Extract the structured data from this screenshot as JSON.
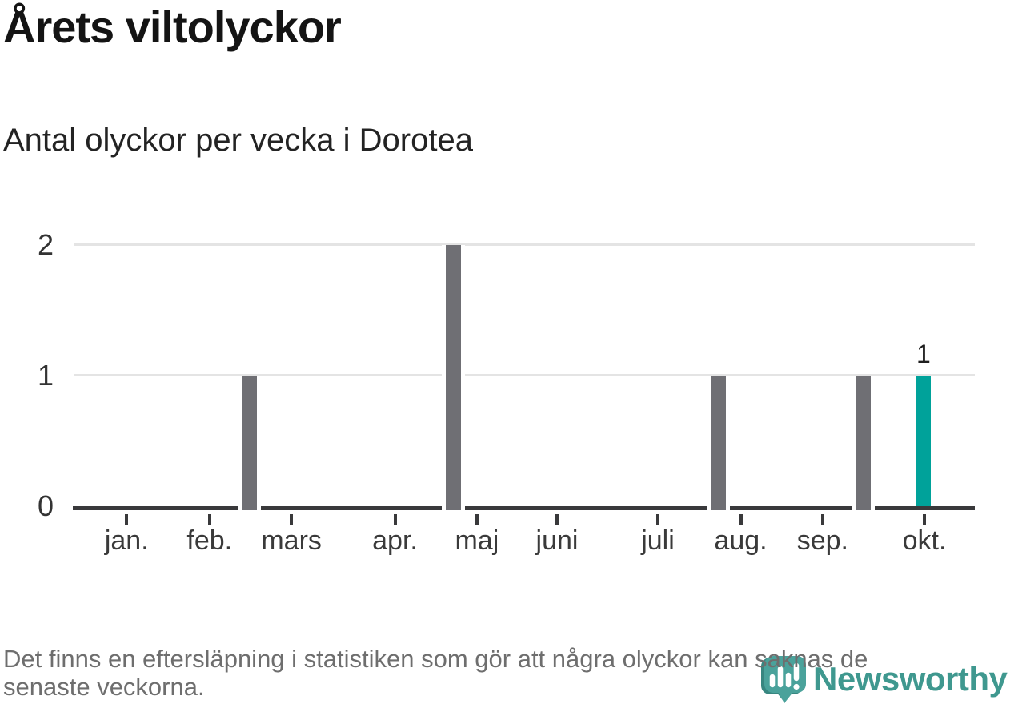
{
  "header": {
    "title": "Årets viltolyckor",
    "subtitle": "Antal olyckor per vecka i Dorotea"
  },
  "chart_data": {
    "type": "bar",
    "title": "Årets viltolyckor",
    "subtitle": "Antal olyckor per vecka i Dorotea",
    "ylabel": "",
    "xlabel": "",
    "ylim": [
      0,
      2
    ],
    "yticks": [
      0,
      1,
      2
    ],
    "grid": "horizontal gridlines at 1 and 2, dark baseline at 0",
    "legend": "none",
    "x_axis_months": [
      {
        "label": "jan.",
        "pos": 0.058
      },
      {
        "label": "feb.",
        "pos": 0.15
      },
      {
        "label": "mars",
        "pos": 0.241
      },
      {
        "label": "apr.",
        "pos": 0.356
      },
      {
        "label": "maj",
        "pos": 0.447
      },
      {
        "label": "juni",
        "pos": 0.536
      },
      {
        "label": "juli",
        "pos": 0.648
      },
      {
        "label": "aug.",
        "pos": 0.74
      },
      {
        "label": "sep.",
        "pos": 0.831
      },
      {
        "label": "okt.",
        "pos": 0.944
      }
    ],
    "bars": [
      {
        "approx_week": 9,
        "period": "late feb.",
        "pos": 0.194,
        "value": 1,
        "highlight": false,
        "data_label": ""
      },
      {
        "approx_week": 19,
        "period": "early maj",
        "pos": 0.421,
        "value": 2,
        "highlight": false,
        "data_label": ""
      },
      {
        "approx_week": 31,
        "period": "early aug.",
        "pos": 0.715,
        "value": 1,
        "highlight": false,
        "data_label": ""
      },
      {
        "approx_week": 38,
        "period": "mid sep.",
        "pos": 0.876,
        "value": 1,
        "highlight": false,
        "data_label": ""
      },
      {
        "approx_week": 41,
        "period": "okt. (latest week)",
        "pos": 0.943,
        "value": 1,
        "highlight": true,
        "data_label": "1"
      }
    ],
    "colors": {
      "bar": "#6f6f74",
      "highlight": "#00a29a",
      "gridline": "#e4e4e4",
      "axis": "#39393b"
    }
  },
  "footer": {
    "line1": "Det finns en eftersläpning i statistiken som gör att några olyckor kan saknas de",
    "line2": "senaste veckorna."
  },
  "logo": {
    "text": "Newsworthy",
    "icon": "newsworthy-chart-bubble-icon",
    "text_color": "#3f988f",
    "icon_color": "#4aa29b"
  }
}
